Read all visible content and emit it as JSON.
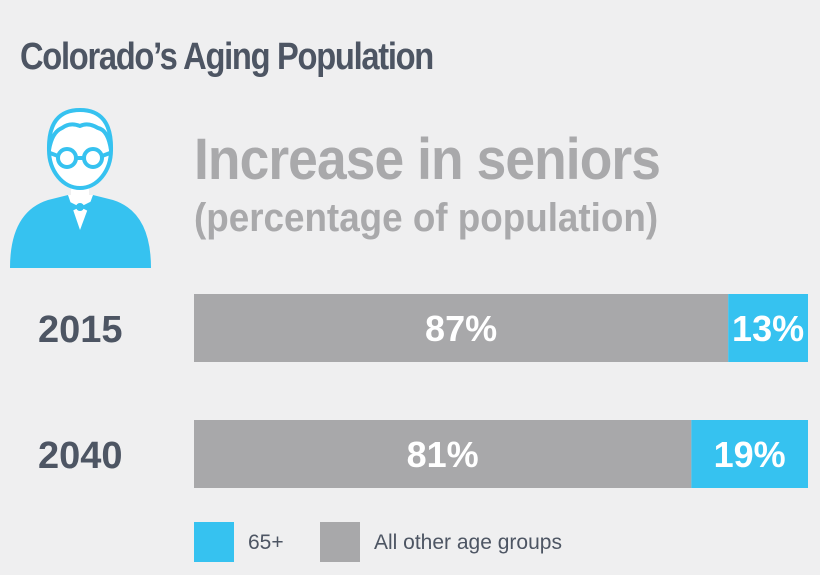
{
  "header": {
    "title": "Colorado’s Aging Population"
  },
  "icons": {
    "avatar": "senior-person-icon"
  },
  "colors": {
    "accent": "#36c2f0",
    "other": "#a8a8aa",
    "title": "#4d5563",
    "subtitle": "#a9a9ab"
  },
  "chart_data": {
    "type": "bar",
    "orientation": "horizontal",
    "stacked": true,
    "title": "Increase in seniors",
    "subtitle": "(percentage of population)",
    "categories": [
      "2015",
      "2040"
    ],
    "series": [
      {
        "name": "All other age groups",
        "values": [
          87,
          81
        ],
        "labels": [
          "87%",
          "81%"
        ],
        "color": "#a8a8aa"
      },
      {
        "name": "65+",
        "values": [
          13,
          19
        ],
        "labels": [
          "13%",
          "19%"
        ],
        "color": "#36c2f0"
      }
    ],
    "xlim": [
      0,
      100
    ],
    "grid": false,
    "legend": {
      "placement": "bottom-left",
      "entries": [
        {
          "label": "65+",
          "color": "#36c2f0"
        },
        {
          "label": "All other age groups",
          "color": "#a8a8aa"
        }
      ]
    }
  }
}
